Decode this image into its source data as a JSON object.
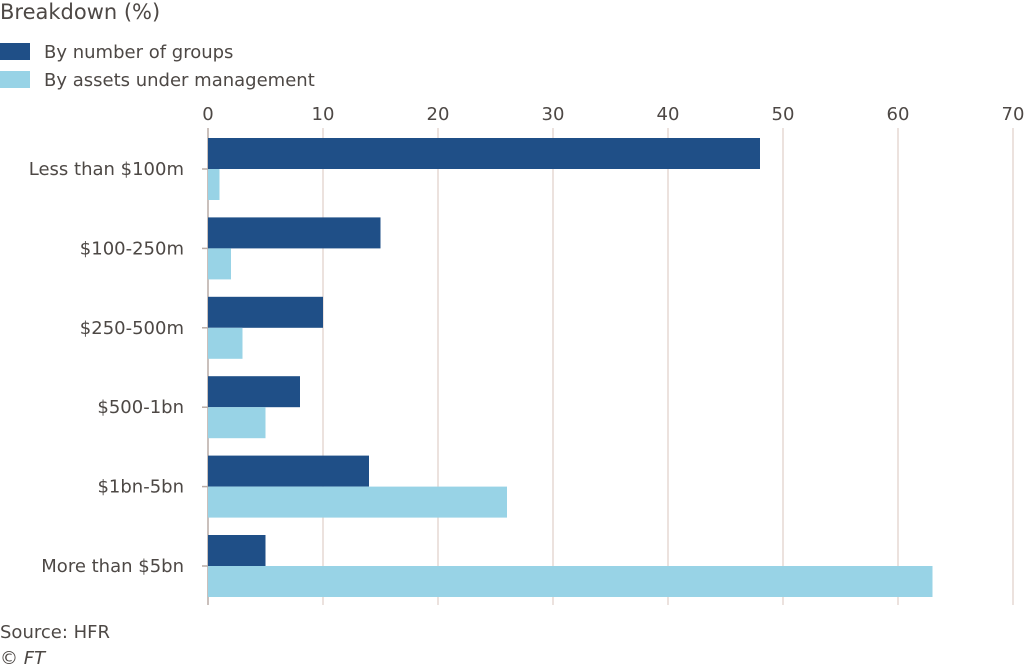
{
  "chart_data": {
    "type": "bar",
    "orientation": "horizontal",
    "title": "Breakdown (%)",
    "categories": [
      "Less than $100m",
      "$100-250m",
      "$250-500m",
      "$500-1bn",
      "$1bn-5bn",
      "More than $5bn"
    ],
    "series": [
      {
        "name": "By number of groups",
        "color": "#1f4f87",
        "values": [
          48,
          15,
          10,
          8,
          14,
          5
        ]
      },
      {
        "name": "By assets under management",
        "color": "#98d3e6",
        "values": [
          1,
          2,
          3,
          5,
          26,
          63
        ]
      }
    ],
    "xlim": [
      0,
      70
    ],
    "xticks": [
      0,
      10,
      20,
      30,
      40,
      50,
      60,
      70
    ],
    "xtick_position": "top",
    "grid": true,
    "legend_position": "top-left"
  },
  "colors": {
    "grid": "#e6d9d3",
    "text": "#4d4845"
  },
  "footer": {
    "source": "Source: HFR",
    "credit": "© FT"
  }
}
